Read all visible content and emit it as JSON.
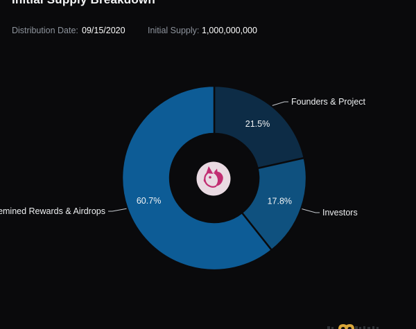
{
  "page": {
    "background": "#0a0a0c"
  },
  "header": {
    "title": "Initial Supply Breakdown",
    "meta": [
      {
        "label": "Distribution Date:",
        "value": "09/15/2020"
      },
      {
        "label": "Initial Supply:",
        "value": "1,000,000,000"
      }
    ]
  },
  "chart_data": {
    "type": "pie",
    "title": "Initial Supply Breakdown",
    "donut": true,
    "start_angle_deg": 0,
    "direction": "clockwise",
    "legend_position": "callouts",
    "total": "1,000,000,000",
    "slices": [
      {
        "label": "Founders & Project",
        "value_pct": 21.5,
        "pct_label": "21.5%",
        "color": "#0d2c46"
      },
      {
        "label": "Investors",
        "value_pct": 17.8,
        "pct_label": "17.8%",
        "color": "#0f517f"
      },
      {
        "label": "Premined Rewards & Airdrops",
        "value_pct": 60.7,
        "pct_label": "60.7%",
        "color": "#0d5c96"
      }
    ],
    "center_logo": "uniswap-unicorn-icon",
    "center_logo_bg": "#e9dae2",
    "center_logo_color": "#c12d72"
  },
  "footer": {
    "watermark_icon": "m-monogram-gold",
    "watermark_color": "#d9a63a"
  }
}
